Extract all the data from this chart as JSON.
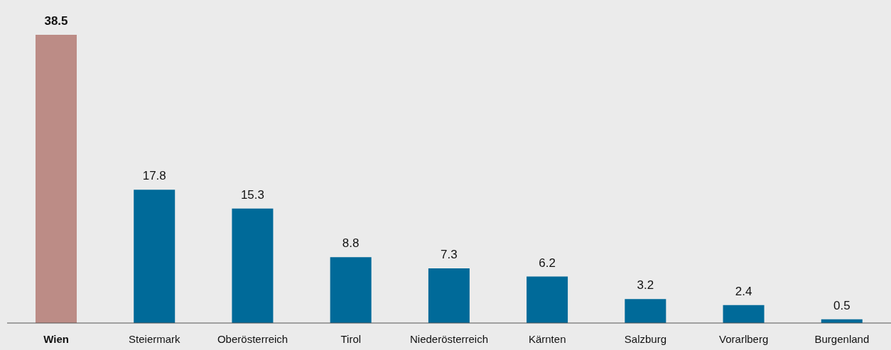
{
  "chart_data": {
    "type": "bar",
    "categories": [
      "Wien",
      "Steiermark",
      "Oberösterreich",
      "Tirol",
      "Niederösterreich",
      "Kärnten",
      "Salzburg",
      "Vorarlberg",
      "Burgenland"
    ],
    "values": [
      38.5,
      17.8,
      15.3,
      8.8,
      7.3,
      6.2,
      3.2,
      2.4,
      0.5
    ],
    "colors": [
      "#bc8c86",
      "#006a99",
      "#006a99",
      "#006a99",
      "#006a99",
      "#006a99",
      "#006a99",
      "#006a99",
      "#006a99"
    ],
    "data_labels": true,
    "grid": false,
    "legend": false
  }
}
